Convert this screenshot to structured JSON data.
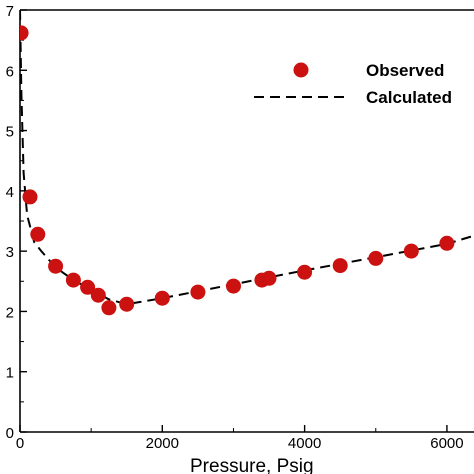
{
  "chart_data": {
    "type": "scatter",
    "title": "",
    "xlabel": "Pressure, Psig",
    "ylabel": "",
    "xlim": [
      0,
      6500
    ],
    "ylim": [
      0,
      7
    ],
    "xticks": [
      0,
      2000,
      4000,
      6000
    ],
    "xtick_labels": [
      "0",
      "2000",
      "4000",
      "6000"
    ],
    "yticks": [
      0,
      1,
      2,
      3,
      4,
      5,
      6,
      7
    ],
    "ytick_labels": [
      "0",
      "1",
      "2",
      "3",
      "4",
      "5",
      "6",
      "7"
    ],
    "grid": false,
    "legend": {
      "position": "top-right"
    },
    "series": [
      {
        "name": "Observed",
        "kind": "markers",
        "color": "#cc1111",
        "x": [
          15,
          140,
          250,
          500,
          750,
          950,
          1100,
          1250,
          1500,
          2000,
          2500,
          3000,
          3400,
          3500,
          4000,
          4500,
          5000,
          5500,
          6000
        ],
        "y": [
          6.62,
          3.9,
          3.28,
          2.75,
          2.52,
          2.4,
          2.27,
          2.06,
          2.12,
          2.22,
          2.32,
          2.42,
          2.52,
          2.55,
          2.65,
          2.76,
          2.88,
          3.0,
          3.13
        ]
      },
      {
        "name": "Calculated",
        "kind": "dashed-line",
        "color": "#000000",
        "x": [
          0,
          20,
          50,
          100,
          200,
          300,
          500,
          750,
          1000,
          1250,
          1500,
          2000,
          3000,
          4000,
          5000,
          6000,
          6500
        ],
        "y": [
          7.0,
          5.6,
          4.3,
          3.6,
          3.15,
          3.0,
          2.73,
          2.52,
          2.36,
          2.2,
          2.12,
          2.22,
          2.45,
          2.68,
          2.9,
          3.12,
          3.3
        ]
      }
    ]
  }
}
